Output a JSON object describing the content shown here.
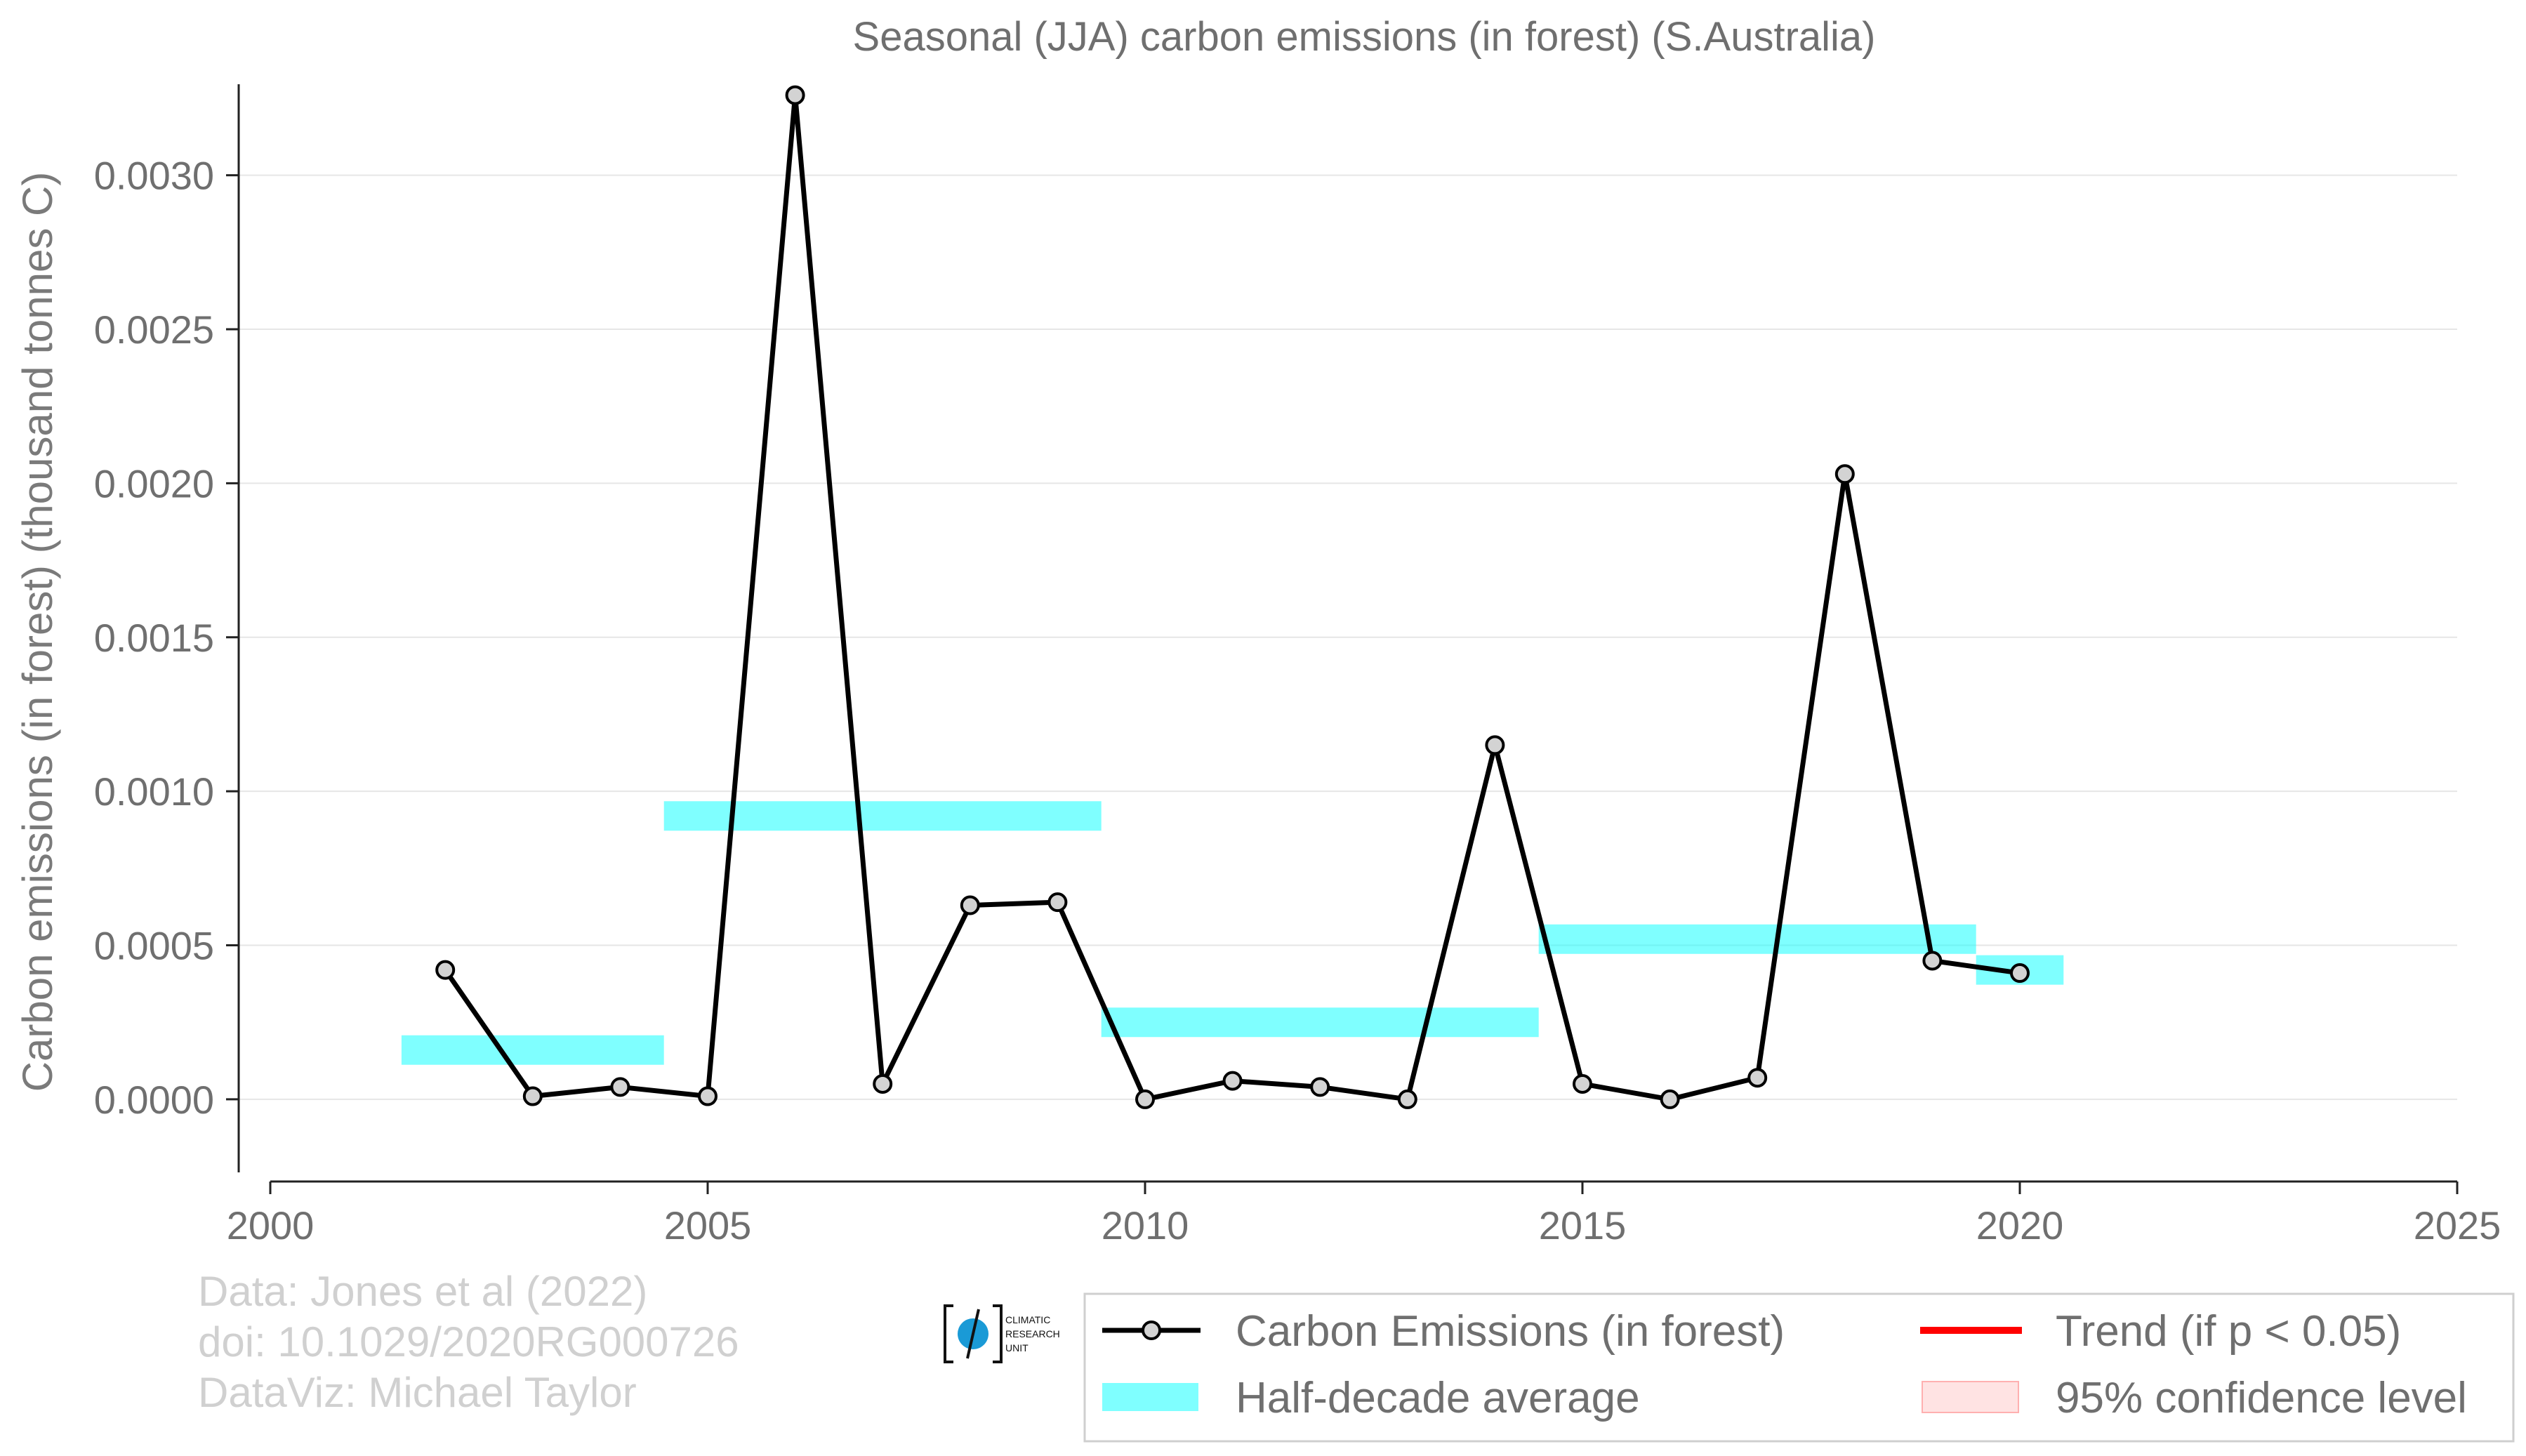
{
  "chart_data": {
    "type": "line",
    "title": "Seasonal (JJA) carbon emissions (in forest) (S.Australia)",
    "xlabel": "",
    "ylabel": "Carbon emissions (in forest) (thousand tonnes C)",
    "xlim": [
      2000,
      2025
    ],
    "ylim": [
      -0.00026,
      0.00325
    ],
    "x_ticks": [
      2000,
      2005,
      2010,
      2015,
      2020,
      2025
    ],
    "x_tick_labels": [
      "2000",
      "2005",
      "2010",
      "2015",
      "2020",
      "2025"
    ],
    "y_ticks": [
      0.0,
      0.0005,
      0.001,
      0.0015,
      0.002,
      0.0025,
      0.003
    ],
    "y_tick_labels": [
      "0.0000",
      "0.0005",
      "0.0010",
      "0.0015",
      "0.0020",
      "0.0025",
      "0.0030"
    ],
    "grid": "horizontal",
    "legend_position": "bottom-right",
    "series": [
      {
        "name": "Carbon Emissions (in forest)",
        "color": "#000000",
        "marker_fill": "#d3d3d3",
        "x": [
          2002,
          2003,
          2004,
          2005,
          2006,
          2007,
          2008,
          2009,
          2010,
          2011,
          2012,
          2013,
          2014,
          2015,
          2016,
          2017,
          2018,
          2019,
          2020
        ],
        "y": [
          0.00042,
          1e-05,
          4e-05,
          1e-05,
          0.00326,
          5e-05,
          0.00063,
          0.00064,
          0.0,
          6e-05,
          4e-05,
          0.0,
          0.00115,
          5e-05,
          0.0,
          7e-05,
          0.00203,
          0.00045,
          0.00041
        ]
      }
    ],
    "half_decade_average": {
      "name": "Half-decade average",
      "color": "#00ffff",
      "segments": [
        {
          "x_start": 2001.5,
          "x_end": 2004.5,
          "value": 0.00016
        },
        {
          "x_start": 2004.5,
          "x_end": 2009.5,
          "value": 0.00092
        },
        {
          "x_start": 2009.5,
          "x_end": 2014.5,
          "value": 0.00025
        },
        {
          "x_start": 2014.5,
          "x_end": 2019.5,
          "value": 0.00052
        },
        {
          "x_start": 2019.5,
          "x_end": 2020.5,
          "value": 0.00042
        }
      ]
    },
    "legend": [
      {
        "label": "Carbon Emissions (in forest)",
        "kind": "line-marker",
        "color": "#000000"
      },
      {
        "label": "Trend (if p < 0.05)",
        "kind": "line",
        "color": "#ff0000"
      },
      {
        "label": "Half-decade average",
        "kind": "band",
        "color": "#00ffff"
      },
      {
        "label": "95% confidence level",
        "kind": "band",
        "color": "#ffc0c0"
      }
    ]
  },
  "credits": {
    "line1": "Data: Jones et al (2022)",
    "line2": "doi: 10.1029/2020RG000726",
    "line3": "DataViz: Michael Taylor"
  },
  "logo": {
    "text_lines": [
      "CLIMATIC",
      "RESEARCH",
      "UNIT"
    ],
    "color": "#1a9ad6"
  }
}
